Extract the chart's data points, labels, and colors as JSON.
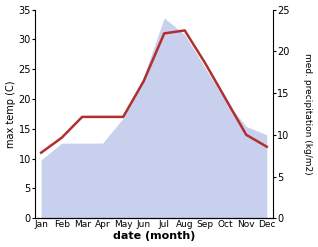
{
  "months": [
    "Jan",
    "Feb",
    "Mar",
    "Apr",
    "May",
    "Jun",
    "Jul",
    "Aug",
    "Sep",
    "Oct",
    "Nov",
    "Dec"
  ],
  "month_indices": [
    0,
    1,
    2,
    3,
    4,
    5,
    6,
    7,
    8,
    9,
    10,
    11
  ],
  "temperature": [
    11,
    13.5,
    17,
    17,
    17,
    23,
    31,
    31.5,
    26,
    20,
    14,
    12
  ],
  "precipitation": [
    7,
    9,
    9,
    9,
    12,
    17,
    24,
    22,
    18,
    14,
    11,
    10
  ],
  "temp_color": "#b03030",
  "precip_fill_color": "#c8d0ee",
  "temp_ylim": [
    0,
    35
  ],
  "precip_ylim": [
    0,
    25
  ],
  "temp_yticks": [
    0,
    5,
    10,
    15,
    20,
    25,
    30,
    35
  ],
  "precip_yticks": [
    0,
    5,
    10,
    15,
    20,
    25
  ],
  "xlabel": "date (month)",
  "ylabel_left": "max temp (C)",
  "ylabel_right": "med. precipitation (kg/m2)",
  "background_color": "#ffffff",
  "line_width": 1.8,
  "figsize": [
    3.18,
    2.47
  ],
  "dpi": 100
}
